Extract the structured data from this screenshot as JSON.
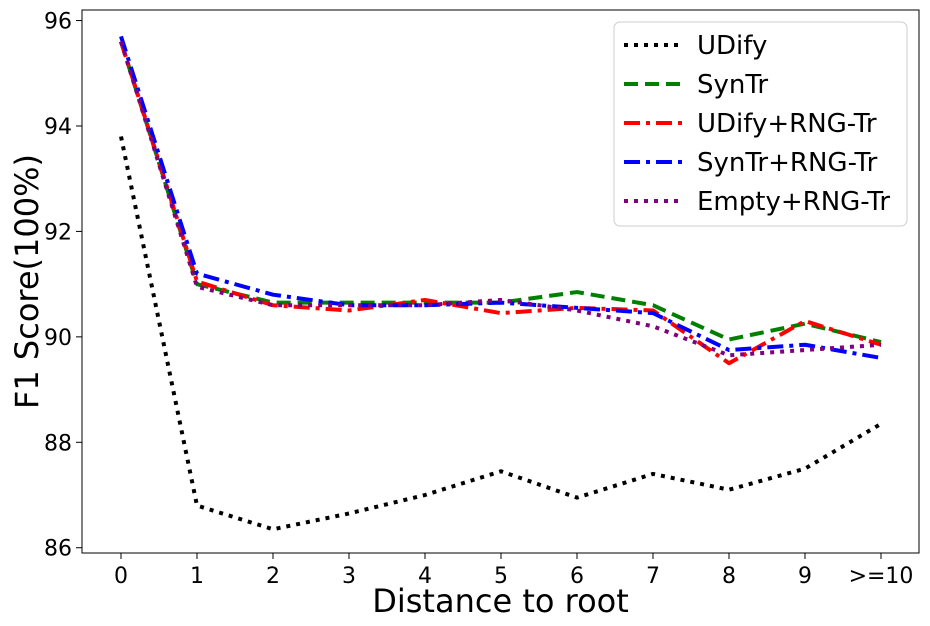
{
  "chart_data": {
    "type": "line",
    "xlabel": "Distance to root",
    "ylabel": "F1 Score(100%)",
    "categories": [
      "0",
      "1",
      "2",
      "3",
      "4",
      "5",
      "6",
      "7",
      "8",
      "9",
      ">=10"
    ],
    "y_ticks": [
      86,
      88,
      90,
      92,
      94,
      96
    ],
    "ylim": [
      85.9,
      96.2
    ],
    "grid": false,
    "legend_position": "top-right",
    "series": [
      {
        "name": "UDify",
        "color": "#000000",
        "style": "dotted",
        "values": [
          93.8,
          86.8,
          86.35,
          86.65,
          87.0,
          87.45,
          86.95,
          87.4,
          87.1,
          87.5,
          88.35
        ]
      },
      {
        "name": "SynTr",
        "color": "#008000",
        "style": "dashed",
        "values": [
          95.6,
          91.0,
          90.65,
          90.65,
          90.65,
          90.65,
          90.85,
          90.6,
          89.95,
          90.25,
          89.9
        ]
      },
      {
        "name": "UDify+RNG-Tr",
        "color": "#ff0000",
        "style": "dashdot",
        "values": [
          95.6,
          91.05,
          90.6,
          90.5,
          90.7,
          90.45,
          90.55,
          90.5,
          89.5,
          90.3,
          89.85
        ]
      },
      {
        "name": "SynTr+RNG-Tr",
        "color": "#0000ff",
        "style": "dashdot",
        "values": [
          95.7,
          91.2,
          90.8,
          90.6,
          90.6,
          90.65,
          90.55,
          90.45,
          89.75,
          89.85,
          89.6
        ]
      },
      {
        "name": "Empty+RNG-Tr",
        "color": "#800080",
        "style": "dotted",
        "values": [
          95.6,
          90.95,
          90.6,
          90.6,
          90.6,
          90.7,
          90.5,
          90.2,
          89.65,
          89.75,
          89.85
        ]
      }
    ]
  }
}
